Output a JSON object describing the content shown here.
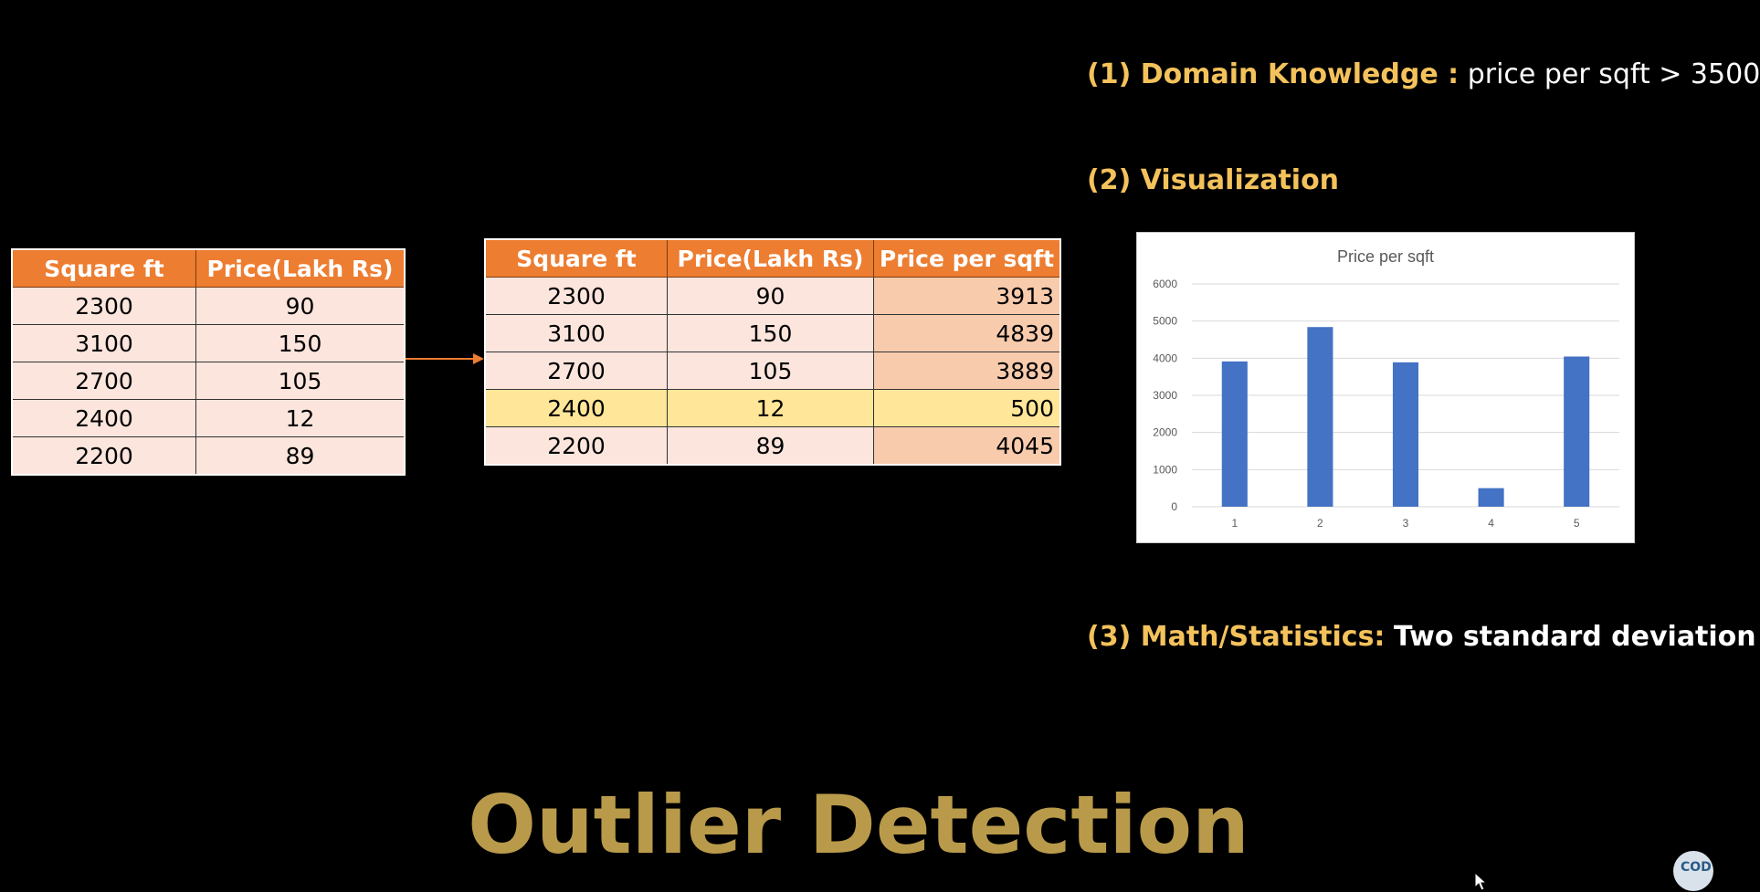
{
  "table_left": {
    "headers": [
      "Square ft",
      "Price(Lakh Rs)"
    ],
    "rows": [
      [
        "2300",
        "90"
      ],
      [
        "3100",
        "150"
      ],
      [
        "2700",
        "105"
      ],
      [
        "2400",
        "12"
      ],
      [
        "2200",
        "89"
      ]
    ]
  },
  "table_right": {
    "headers": [
      "Square ft",
      "Price(Lakh Rs)",
      "Price per sqft"
    ],
    "rows": [
      [
        "2300",
        "90",
        "3913"
      ],
      [
        "3100",
        "150",
        "4839"
      ],
      [
        "2700",
        "105",
        "3889"
      ],
      [
        "2400",
        "12",
        "500"
      ],
      [
        "2200",
        "89",
        "4045"
      ]
    ],
    "highlighted_row": 3
  },
  "methods": {
    "m1_label": "(1) Domain Knowledge :",
    "m1_text": "price per sqft > 3500",
    "m2_label": "(2) Visualization",
    "m3_label": "(3) Math/Statistics:",
    "m3_text": "Two standard deviation"
  },
  "chart_data": {
    "type": "bar",
    "title": "Price per sqft",
    "categories": [
      "1",
      "2",
      "3",
      "4",
      "5"
    ],
    "values": [
      3913,
      4839,
      3889,
      500,
      4045
    ],
    "ylim": [
      0,
      6000
    ],
    "yticks": [
      "0",
      "1000",
      "2000",
      "3000",
      "4000",
      "5000",
      "6000"
    ],
    "grid": true,
    "color": "#4472c4"
  },
  "main_title": "Outlier Detection",
  "logo_text": "COD",
  "colors": {
    "header": "#ed7d31",
    "cell": "#fbe5dd",
    "ppsf_cell": "#f8cbad",
    "highlight": "#ffe699",
    "gold": "#f4c25b",
    "title_gold": "#b89a4a"
  }
}
